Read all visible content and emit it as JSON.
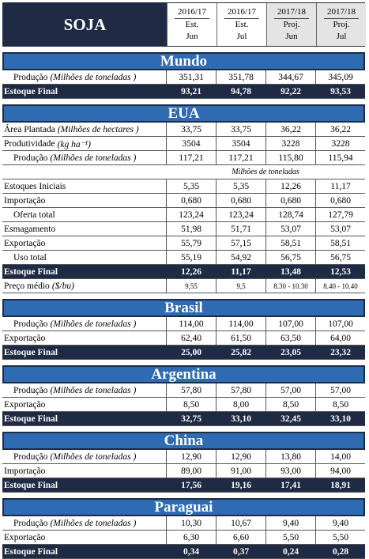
{
  "header": {
    "title": "SOJA",
    "columns": [
      [
        "2016/17",
        "Est.",
        "Jun"
      ],
      [
        "2016/17",
        "Est.",
        "Jul"
      ],
      [
        "2017/18",
        "Proj.",
        "Jun"
      ],
      [
        "2017/18",
        "Proj.",
        "Jul"
      ]
    ]
  },
  "sections": [
    {
      "name": "Mundo",
      "rows": [
        {
          "label": "Produção",
          "unit": "(Milhões de toneladas )",
          "values": [
            "351,31",
            "351,78",
            "344,67",
            "345,09"
          ]
        },
        {
          "label": "Estoque Final",
          "values": [
            "93,21",
            "94,78",
            "92,22",
            "93,53"
          ]
        }
      ]
    },
    {
      "name": "EUA",
      "rows": [
        {
          "label": "Área Plantada",
          "unit": "(Milhões de hectares )",
          "values": [
            "33,75",
            "33,75",
            "36,22",
            "36,22"
          ]
        },
        {
          "label": "Produtividade",
          "unit": "(kg ha⁻¹)",
          "values": [
            "3504",
            "3504",
            "3228",
            "3228"
          ]
        },
        {
          "label": "Produção",
          "unit": "(Milhões de toneladas )",
          "values": [
            "117,21",
            "117,21",
            "115,80",
            "115,94"
          ]
        },
        {
          "label": "Milhões de toneladas"
        },
        {
          "label": "Estoques Iniciais",
          "values": [
            "5,35",
            "5,35",
            "12,26",
            "11,17"
          ]
        },
        {
          "label": "Importação",
          "values": [
            "0,680",
            "0,680",
            "0,680",
            "0,680"
          ]
        },
        {
          "label": "Oferta total",
          "values": [
            "123,24",
            "123,24",
            "128,74",
            "127,79"
          ]
        },
        {
          "label": "Esmagamento",
          "values": [
            "51,98",
            "51,71",
            "53,07",
            "53,07"
          ]
        },
        {
          "label": "Exportação",
          "values": [
            "55,79",
            "57,15",
            "58,51",
            "58,51"
          ]
        },
        {
          "label": "Uso total",
          "values": [
            "55,19",
            "54,92",
            "56,75",
            "56,75"
          ]
        },
        {
          "label": "Estoque Final",
          "values": [
            "12,26",
            "11,17",
            "13,48",
            "12,53"
          ]
        },
        {
          "label": "Preço médio",
          "unit": "($/bu)",
          "values": [
            "9,55",
            "9,5",
            "8.30 - 10.30",
            "8.40 - 10.40"
          ]
        }
      ]
    },
    {
      "name": "Brasil",
      "rows": [
        {
          "label": "Produção",
          "unit": "(Milhões de toneladas )",
          "values": [
            "114,00",
            "114,00",
            "107,00",
            "107,00"
          ]
        },
        {
          "label": "Exportação",
          "values": [
            "62,40",
            "61,50",
            "63,50",
            "64,00"
          ]
        },
        {
          "label": "Estoque Final",
          "values": [
            "25,00",
            "25,82",
            "23,05",
            "23,32"
          ]
        }
      ]
    },
    {
      "name": "Argentina",
      "rows": [
        {
          "label": "Produção",
          "unit": "(Milhões de toneladas )",
          "values": [
            "57,80",
            "57,80",
            "57,00",
            "57,00"
          ]
        },
        {
          "label": "Exportação",
          "values": [
            "8,50",
            "8,00",
            "8,50",
            "8,50"
          ]
        },
        {
          "label": "Estoque Final",
          "values": [
            "32,75",
            "33,10",
            "32,45",
            "33,10"
          ]
        }
      ]
    },
    {
      "name": "China",
      "rows": [
        {
          "label": "Produção",
          "unit": "(Milhões de toneladas )",
          "values": [
            "12,90",
            "12,90",
            "13,80",
            "14,00"
          ]
        },
        {
          "label": "Importação",
          "values": [
            "89,00",
            "91,00",
            "93,00",
            "94,00"
          ]
        },
        {
          "label": "Estoque Final",
          "values": [
            "17,56",
            "19,16",
            "17,41",
            "18,91"
          ]
        }
      ]
    },
    {
      "name": "Paraguai",
      "rows": [
        {
          "label": "Produção",
          "unit": "(Milhões de toneladas )",
          "values": [
            "10,30",
            "10,67",
            "9,40",
            "9,40"
          ]
        },
        {
          "label": "Exportação",
          "values": [
            "6,30",
            "6,60",
            "5,50",
            "5,50"
          ]
        },
        {
          "label": "Estoque Final",
          "values": [
            "0,34",
            "0,37",
            "0,24",
            "0,28"
          ]
        }
      ]
    }
  ]
}
